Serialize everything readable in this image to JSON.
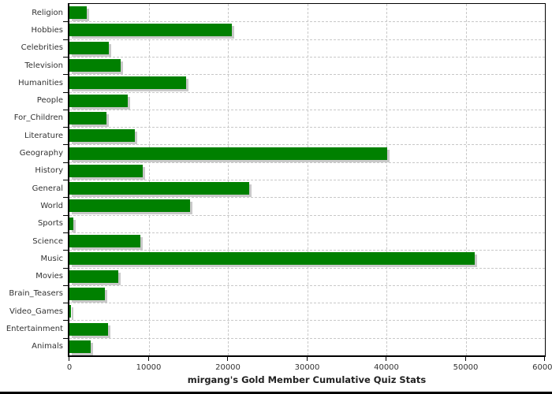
{
  "chart_data": {
    "type": "bar",
    "orientation": "horizontal",
    "title": "mirgang's Gold Member Cumulative Quiz Stats",
    "categories": [
      "Religion",
      "Hobbies",
      "Celebrities",
      "Television",
      "Humanities",
      "People",
      "For_Children",
      "Literature",
      "Geography",
      "History",
      "General",
      "World",
      "Sports",
      "Science",
      "Music",
      "Movies",
      "Brain_Teasers",
      "Video_Games",
      "Entertainment",
      "Animals"
    ],
    "values": [
      2200,
      20500,
      5000,
      6500,
      14700,
      7400,
      4700,
      8300,
      40100,
      9300,
      22700,
      15200,
      500,
      9000,
      51100,
      6200,
      4500,
      200,
      4900,
      2700
    ],
    "xlabel": "",
    "ylabel": "",
    "xlim": [
      0,
      60000
    ],
    "x_ticks": [
      0,
      10000,
      20000,
      30000,
      40000,
      50000,
      60000
    ],
    "x_tick_labels": [
      "0",
      "10000",
      "20000",
      "30000",
      "40000",
      "50000",
      "60000"
    ],
    "grid": "dashed",
    "legend": "none"
  },
  "colors": {
    "bar": "#008000",
    "bar_shadow": "#c9c9c9",
    "grid": "#c8c8c8",
    "axis": "#000000",
    "text": "#333333"
  }
}
